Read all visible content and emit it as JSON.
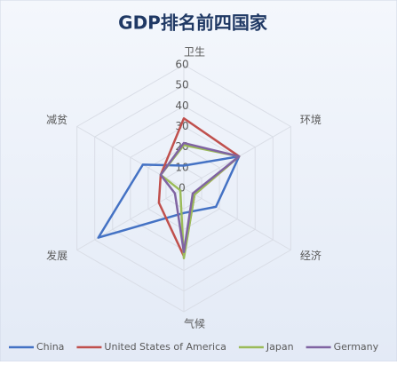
{
  "chart_data": {
    "type": "radar",
    "title": "GDP排名前四国家",
    "categories": [
      "卫生",
      "环境",
      "经济",
      "气候",
      "发展",
      "减贫"
    ],
    "series": [
      {
        "name": "China",
        "color": "#4472c4",
        "values": [
          11,
          31,
          18,
          12,
          48,
          23
        ]
      },
      {
        "name": "United States of America",
        "color": "#c0504d",
        "values": [
          34,
          31,
          6,
          33,
          14,
          13
        ]
      },
      {
        "name": "Japan",
        "color": "#9bbb59",
        "values": [
          21,
          31,
          6,
          34,
          2,
          13
        ]
      },
      {
        "name": "Germany",
        "color": "#8064a2",
        "values": [
          22,
          31,
          5,
          31,
          5,
          13
        ]
      }
    ],
    "rlim": [
      0,
      60
    ],
    "rticks": [
      0,
      10,
      20,
      30,
      40,
      50,
      60
    ],
    "grid": true
  }
}
